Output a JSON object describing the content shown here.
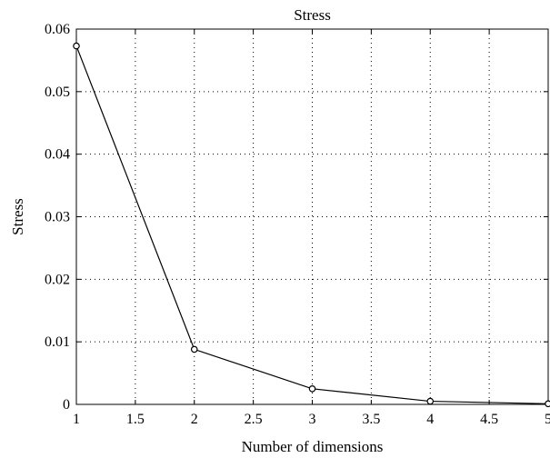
{
  "chart_data": {
    "type": "line",
    "title": "Stress",
    "xlabel": "Number of dimensions",
    "ylabel": "Stress",
    "x": [
      1,
      2,
      3,
      4,
      5
    ],
    "series": [
      {
        "values": [
          0.0573,
          0.0088,
          0.0025,
          0.0005,
          0.0001
        ],
        "color": "#000000",
        "marker": "open-circle"
      }
    ],
    "xlim": [
      1,
      5
    ],
    "ylim": [
      0,
      0.06
    ],
    "xticks": [
      1,
      1.5,
      2,
      2.5,
      3,
      3.5,
      4,
      4.5,
      5
    ],
    "xtick_labels": [
      "1",
      "1.5",
      "2",
      "2.5",
      "3",
      "3.5",
      "4",
      "4.5",
      "5"
    ],
    "yticks": [
      0,
      0.01,
      0.02,
      0.03,
      0.04,
      0.05,
      0.06
    ],
    "ytick_labels": [
      "0",
      "0.01",
      "0.02",
      "0.03",
      "0.04",
      "0.05",
      "0.06"
    ],
    "grid": true,
    "grid_style": "dotted"
  }
}
